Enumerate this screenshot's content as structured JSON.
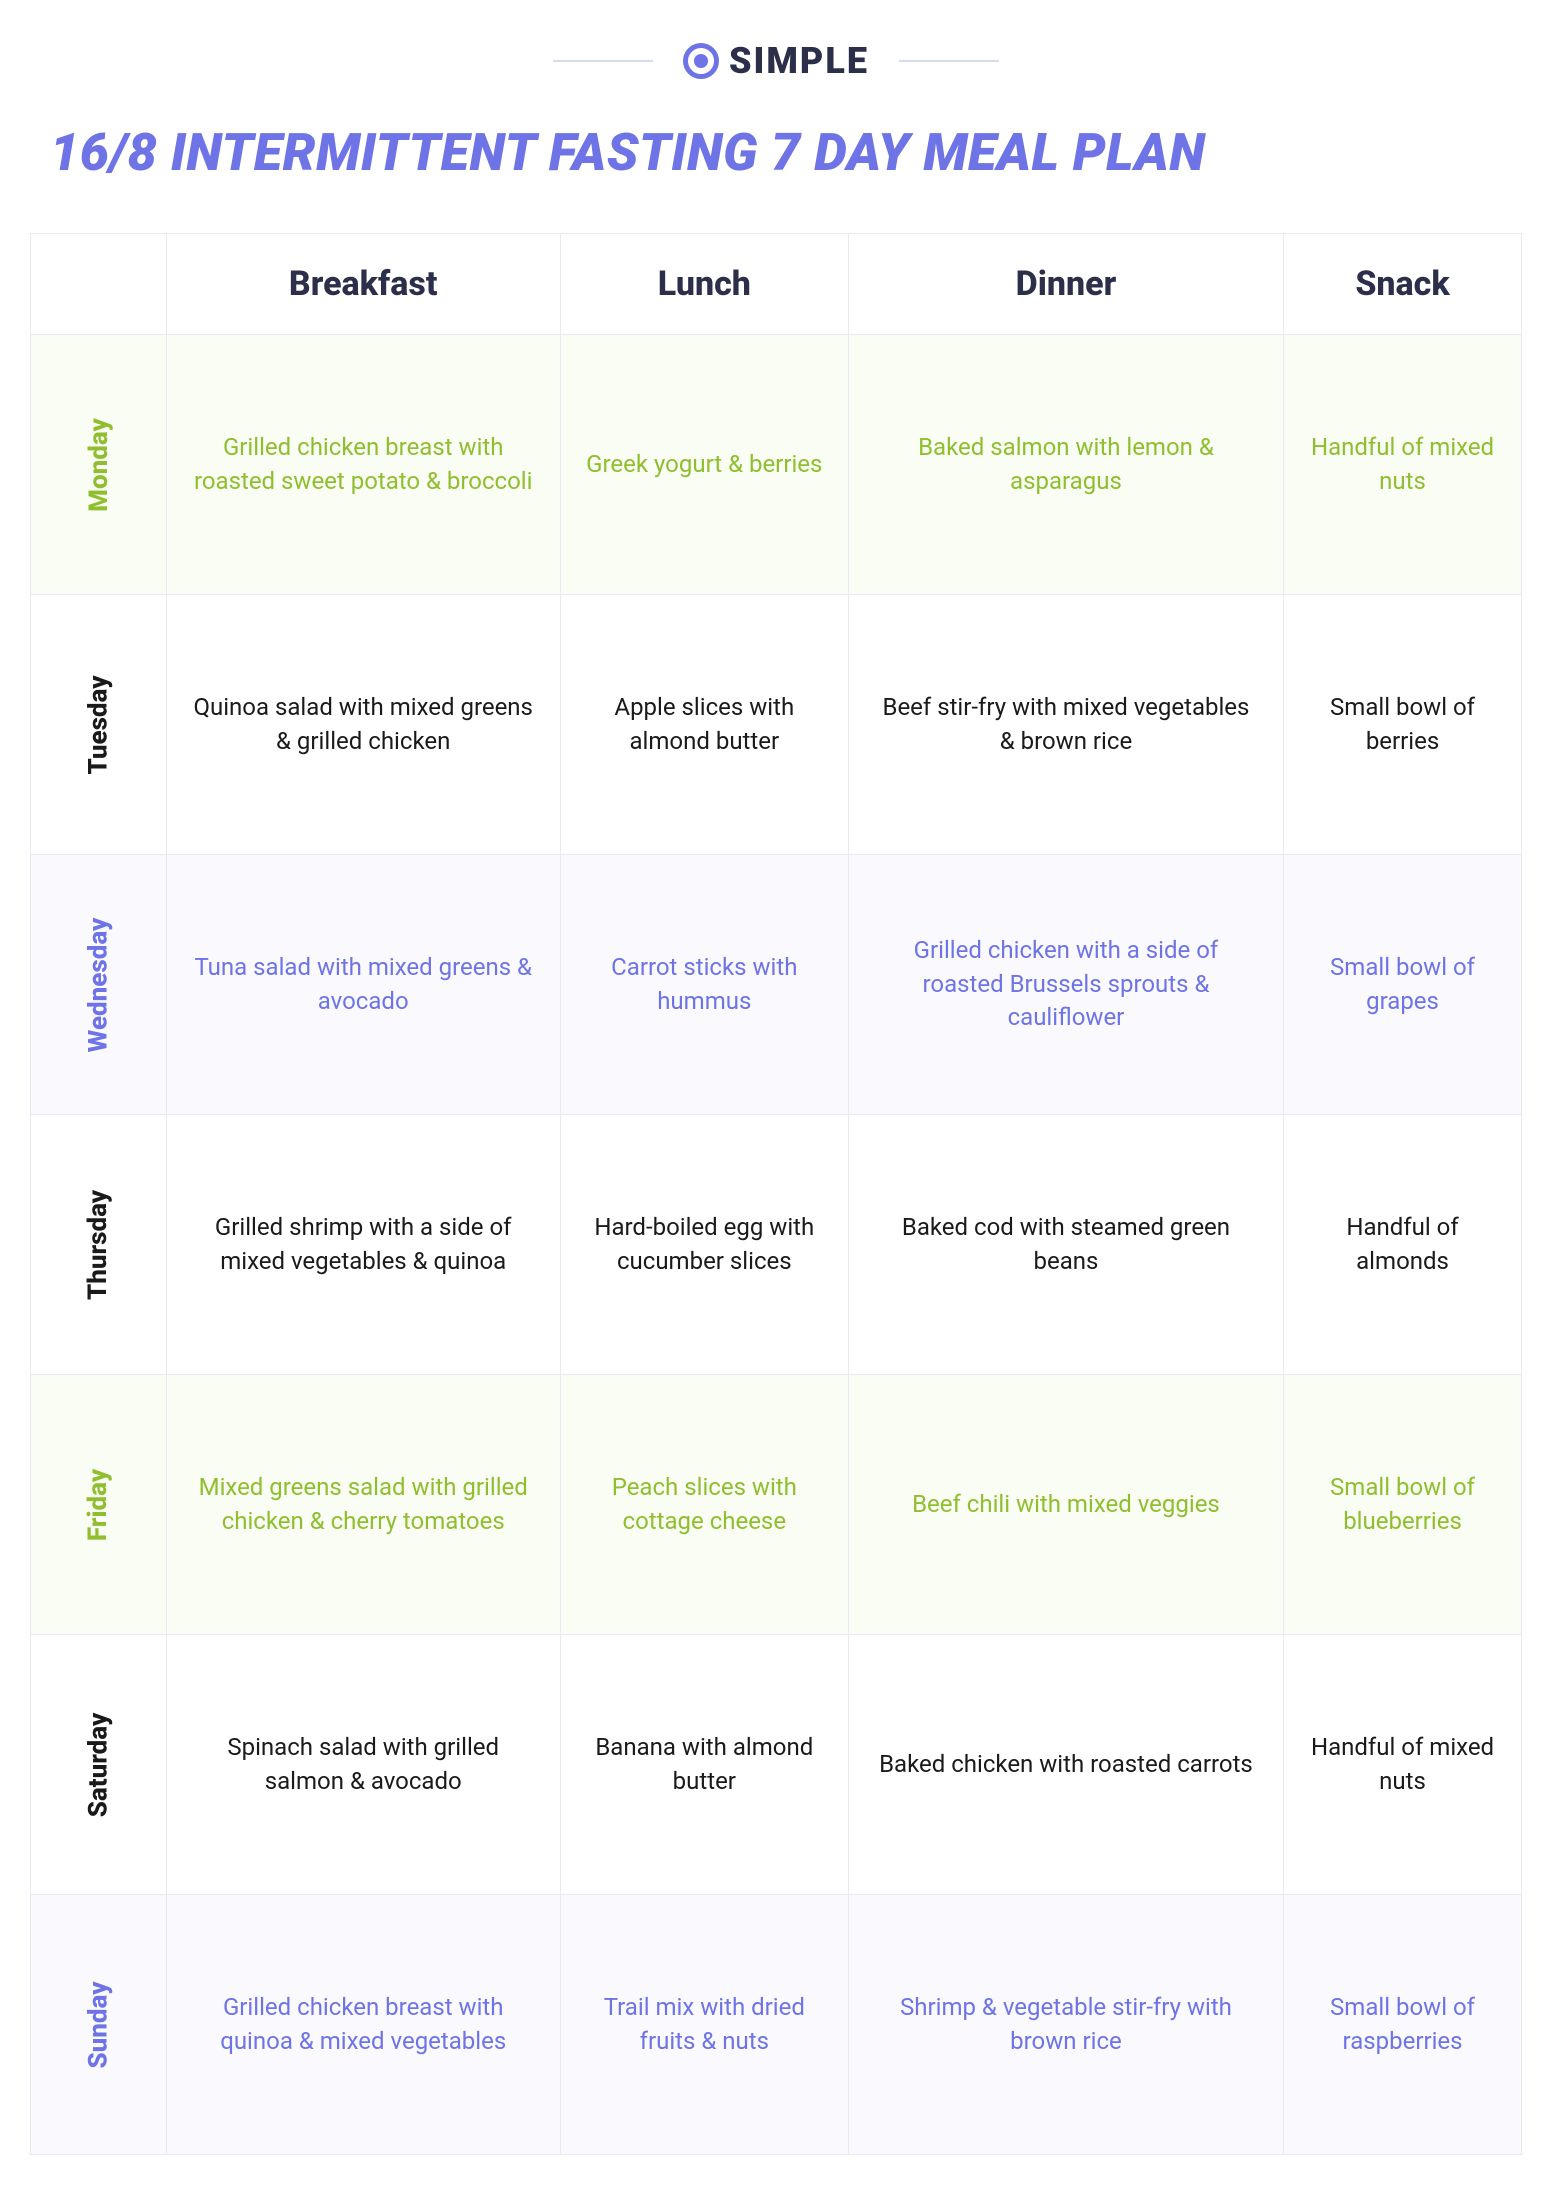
{
  "brand": {
    "name": "SIMPLE"
  },
  "title": "16/8 INTERMITTENT FASTING 7 DAY MEAL PLAN",
  "colors": {
    "green": "#8fbf2e",
    "purple": "#6e73e6",
    "dark": "#2c2f4a",
    "black": "#1a1a1a",
    "border": "#e8eaf2",
    "bg_green": "#fafdf3",
    "bg_purple": "#f9f9fe",
    "bg_white": "#ffffff"
  },
  "columns": [
    "Breakfast",
    "Lunch",
    "Dinner",
    "Snack"
  ],
  "rows": [
    {
      "day": "Monday",
      "color_class": "row-green",
      "meals": [
        "Grilled chicken breast with roasted sweet potato & broccoli",
        "Greek yogurt & berries",
        "Baked salmon with lemon & asparagus",
        "Handful of mixed nuts"
      ]
    },
    {
      "day": "Tuesday",
      "color_class": "row-black",
      "meals": [
        "Quinoa salad with mixed greens & grilled chicken",
        "Apple slices with almond butter",
        "Beef stir-fry with mixed vegetables & brown rice",
        "Small bowl of berries"
      ]
    },
    {
      "day": "Wednesday",
      "color_class": "row-purple",
      "meals": [
        "Tuna salad with mixed greens & avocado",
        "Carrot sticks with hummus",
        "Grilled chicken with a side of roasted Brussels sprouts & cauliflower",
        "Small bowl of grapes"
      ]
    },
    {
      "day": "Thursday",
      "color_class": "row-black",
      "meals": [
        "Grilled shrimp with a side of mixed vegetables & quinoa",
        "Hard-boiled egg with cucumber slices",
        "Baked cod with steamed green beans",
        "Handful of almonds"
      ]
    },
    {
      "day": "Friday",
      "color_class": "row-green",
      "meals": [
        "Mixed greens salad with grilled chicken & cherry tomatoes",
        "Peach slices with cottage cheese",
        "Beef chili with mixed veggies",
        "Small bowl of blueberries"
      ]
    },
    {
      "day": "Saturday",
      "color_class": "row-black",
      "meals": [
        "Spinach salad with grilled salmon & avocado",
        "Banana with almond butter",
        "Baked chicken with roasted carrots",
        "Handful of mixed nuts"
      ]
    },
    {
      "day": "Sunday",
      "color_class": "row-purple",
      "meals": [
        "Grilled chicken breast with quinoa & mixed vegetables",
        "Trail mix with dried fruits & nuts",
        "Shrimp & vegetable stir-fry with brown rice",
        "Small bowl of raspberries"
      ]
    }
  ]
}
